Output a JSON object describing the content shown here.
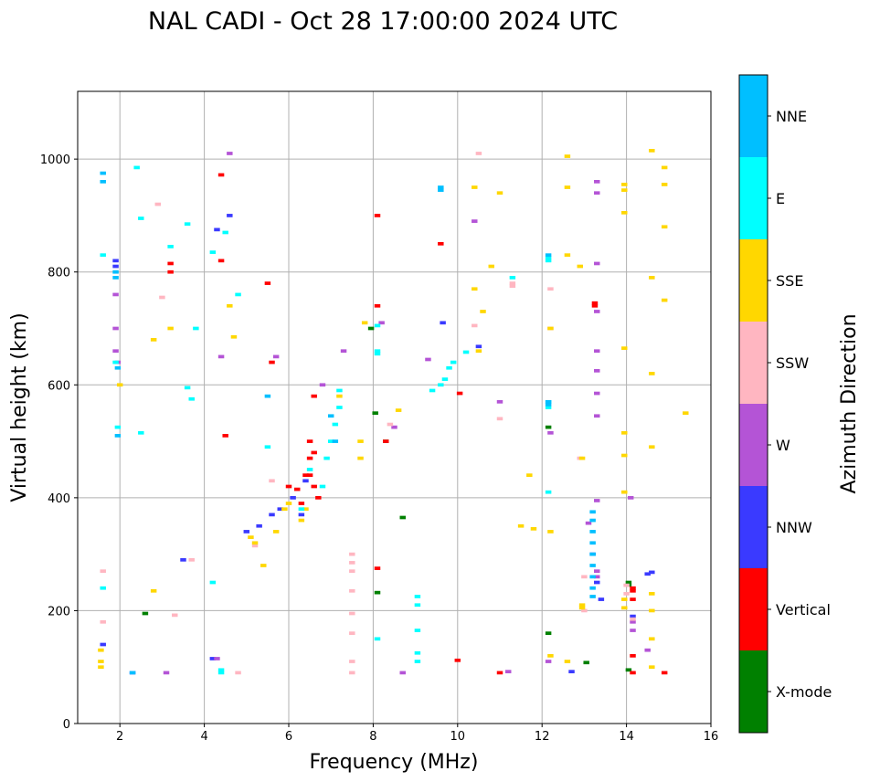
{
  "chart_data": {
    "type": "scatter",
    "title": "NAL CADI - Oct 28 17:00:00 2024 UTC",
    "xlabel": "Frequency (MHz)",
    "ylabel": "Virtual height (km)",
    "xlim": [
      1,
      16
    ],
    "ylim": [
      0,
      1120
    ],
    "xticks": [
      2,
      4,
      6,
      8,
      10,
      12,
      14,
      16
    ],
    "yticks": [
      0,
      200,
      400,
      600,
      800,
      1000
    ],
    "grid": true,
    "colorbar": {
      "title": "Azimuth Direction",
      "categories": [
        {
          "name": "X-mode",
          "color": "#008000"
        },
        {
          "name": "Vertical",
          "color": "#ff0000"
        },
        {
          "name": "NNW",
          "color": "#3a3aff"
        },
        {
          "name": "W",
          "color": "#b454d6"
        },
        {
          "name": "SSW",
          "color": "#ffb6c1"
        },
        {
          "name": "SSE",
          "color": "#ffd700"
        },
        {
          "name": "E",
          "color": "#00ffff"
        },
        {
          "name": "NNE",
          "color": "#00bfff"
        }
      ]
    },
    "series": [
      {
        "name": "X-mode",
        "points": [
          [
            2.6,
            195
          ],
          [
            7.95,
            700
          ],
          [
            8.05,
            550
          ],
          [
            8.1,
            232
          ],
          [
            8.3,
            500
          ],
          [
            8.7,
            365
          ],
          [
            12.15,
            525
          ],
          [
            12.15,
            160
          ],
          [
            13.05,
            108
          ],
          [
            14.05,
            250
          ],
          [
            14.05,
            245
          ],
          [
            14.05,
            95
          ]
        ]
      },
      {
        "name": "Vertical",
        "points": [
          [
            3.2,
            815
          ],
          [
            3.2,
            800
          ],
          [
            4.4,
            972
          ],
          [
            4.4,
            820
          ],
          [
            4.5,
            510
          ],
          [
            5.5,
            780
          ],
          [
            5.6,
            640
          ],
          [
            6.0,
            420
          ],
          [
            6.2,
            415
          ],
          [
            6.3,
            390
          ],
          [
            6.4,
            440
          ],
          [
            6.5,
            470
          ],
          [
            6.5,
            440
          ],
          [
            6.5,
            500
          ],
          [
            6.6,
            420
          ],
          [
            6.6,
            480
          ],
          [
            6.7,
            400
          ],
          [
            6.6,
            580
          ],
          [
            8.1,
            900
          ],
          [
            8.1,
            740
          ],
          [
            8.1,
            275
          ],
          [
            8.3,
            500
          ],
          [
            9.6,
            850
          ],
          [
            10.0,
            112
          ],
          [
            10.05,
            585
          ],
          [
            11.0,
            90
          ],
          [
            13.25,
            745
          ],
          [
            13.25,
            740
          ],
          [
            14.15,
            240
          ],
          [
            14.15,
            235
          ],
          [
            14.15,
            220
          ],
          [
            14.15,
            120
          ],
          [
            14.15,
            90
          ],
          [
            14.9,
            90
          ]
        ]
      },
      {
        "name": "NNW",
        "points": [
          [
            1.6,
            140
          ],
          [
            1.9,
            820
          ],
          [
            1.9,
            810
          ],
          [
            2.3,
            90
          ],
          [
            3.5,
            290
          ],
          [
            4.2,
            115
          ],
          [
            4.3,
            875
          ],
          [
            4.6,
            900
          ],
          [
            5.0,
            340
          ],
          [
            5.3,
            350
          ],
          [
            5.6,
            370
          ],
          [
            5.8,
            380
          ],
          [
            6.1,
            400
          ],
          [
            6.3,
            370
          ],
          [
            6.4,
            430
          ],
          [
            9.65,
            710
          ],
          [
            10.5,
            668
          ],
          [
            13.4,
            220
          ],
          [
            13.2,
            300
          ],
          [
            13.3,
            250
          ],
          [
            14.15,
            190
          ],
          [
            14.5,
            265
          ],
          [
            14.6,
            268
          ],
          [
            12.7,
            92
          ]
        ]
      },
      {
        "name": "W",
        "points": [
          [
            1.9,
            760
          ],
          [
            1.9,
            700
          ],
          [
            1.9,
            660
          ],
          [
            1.95,
            640
          ],
          [
            3.1,
            90
          ],
          [
            4.3,
            115
          ],
          [
            4.4,
            650
          ],
          [
            4.6,
            1010
          ],
          [
            5.7,
            650
          ],
          [
            6.8,
            600
          ],
          [
            7.3,
            660
          ],
          [
            8.2,
            710
          ],
          [
            8.5,
            525
          ],
          [
            9.3,
            645
          ],
          [
            10.4,
            890
          ],
          [
            11.0,
            570
          ],
          [
            12.2,
            515
          ],
          [
            12.15,
            110
          ],
          [
            13.1,
            355
          ],
          [
            13.3,
            940
          ],
          [
            13.3,
            960
          ],
          [
            13.3,
            815
          ],
          [
            13.3,
            730
          ],
          [
            13.3,
            660
          ],
          [
            13.3,
            625
          ],
          [
            13.3,
            585
          ],
          [
            13.3,
            545
          ],
          [
            13.3,
            395
          ],
          [
            13.3,
            270
          ],
          [
            13.3,
            260
          ],
          [
            14.15,
            180
          ],
          [
            14.15,
            165
          ],
          [
            14.1,
            400
          ],
          [
            14.5,
            130
          ],
          [
            8.7,
            90
          ],
          [
            11.2,
            92
          ]
        ]
      },
      {
        "name": "SSW",
        "points": [
          [
            1.6,
            180
          ],
          [
            1.6,
            270
          ],
          [
            2.9,
            920
          ],
          [
            3.0,
            755
          ],
          [
            3.3,
            192
          ],
          [
            3.7,
            290
          ],
          [
            4.8,
            90
          ],
          [
            5.2,
            315
          ],
          [
            5.6,
            430
          ],
          [
            7.5,
            300
          ],
          [
            7.5,
            285
          ],
          [
            7.5,
            270
          ],
          [
            7.5,
            235
          ],
          [
            7.5,
            195
          ],
          [
            7.5,
            160
          ],
          [
            7.5,
            110
          ],
          [
            7.5,
            90
          ],
          [
            8.4,
            530
          ],
          [
            10.5,
            1010
          ],
          [
            10.4,
            705
          ],
          [
            11.0,
            540
          ],
          [
            11.3,
            780
          ],
          [
            11.3,
            775
          ],
          [
            12.2,
            770
          ],
          [
            12.2,
            700
          ],
          [
            13.0,
            260
          ],
          [
            13.0,
            200
          ],
          [
            14.0,
            245
          ],
          [
            14.0,
            230
          ],
          [
            14.15,
            185
          ],
          [
            12.9,
            470
          ]
        ]
      },
      {
        "name": "SSE",
        "points": [
          [
            1.55,
            130
          ],
          [
            1.55,
            110
          ],
          [
            1.55,
            100
          ],
          [
            2.0,
            600
          ],
          [
            2.8,
            235
          ],
          [
            2.8,
            680
          ],
          [
            3.2,
            700
          ],
          [
            4.6,
            740
          ],
          [
            4.7,
            685
          ],
          [
            5.1,
            330
          ],
          [
            5.2,
            320
          ],
          [
            5.4,
            280
          ],
          [
            5.7,
            340
          ],
          [
            5.9,
            380
          ],
          [
            6.0,
            390
          ],
          [
            6.3,
            360
          ],
          [
            6.4,
            380
          ],
          [
            7.2,
            580
          ],
          [
            7.7,
            500
          ],
          [
            7.7,
            470
          ],
          [
            7.8,
            710
          ],
          [
            8.6,
            555
          ],
          [
            10.4,
            770
          ],
          [
            10.6,
            730
          ],
          [
            10.8,
            810
          ],
          [
            10.5,
            660
          ],
          [
            10.4,
            950
          ],
          [
            11.0,
            940
          ],
          [
            11.5,
            350
          ],
          [
            11.7,
            440
          ],
          [
            11.8,
            345
          ],
          [
            12.2,
            700
          ],
          [
            12.2,
            340
          ],
          [
            12.2,
            120
          ],
          [
            12.6,
            1005
          ],
          [
            12.6,
            950
          ],
          [
            12.6,
            830
          ],
          [
            12.6,
            110
          ],
          [
            12.9,
            810
          ],
          [
            12.95,
            470
          ],
          [
            12.95,
            210
          ],
          [
            12.95,
            205
          ],
          [
            13.95,
            955
          ],
          [
            13.95,
            945
          ],
          [
            13.95,
            905
          ],
          [
            13.95,
            665
          ],
          [
            13.95,
            515
          ],
          [
            13.95,
            475
          ],
          [
            13.95,
            410
          ],
          [
            13.95,
            220
          ],
          [
            13.95,
            205
          ],
          [
            14.6,
            1015
          ],
          [
            14.6,
            790
          ],
          [
            14.6,
            620
          ],
          [
            14.6,
            490
          ],
          [
            14.6,
            230
          ],
          [
            14.6,
            200
          ],
          [
            14.6,
            150
          ],
          [
            14.6,
            100
          ],
          [
            14.9,
            985
          ],
          [
            14.9,
            955
          ],
          [
            14.9,
            880
          ],
          [
            14.9,
            750
          ],
          [
            15.4,
            550
          ]
        ]
      },
      {
        "name": "E",
        "points": [
          [
            1.6,
            240
          ],
          [
            1.6,
            830
          ],
          [
            1.9,
            640
          ],
          [
            1.95,
            525
          ],
          [
            2.4,
            985
          ],
          [
            2.5,
            515
          ],
          [
            2.5,
            895
          ],
          [
            3.2,
            845
          ],
          [
            3.6,
            885
          ],
          [
            3.6,
            595
          ],
          [
            3.8,
            700
          ],
          [
            3.7,
            575
          ],
          [
            4.2,
            250
          ],
          [
            4.2,
            835
          ],
          [
            4.4,
            95
          ],
          [
            4.4,
            90
          ],
          [
            4.5,
            870
          ],
          [
            4.8,
            760
          ],
          [
            5.5,
            490
          ],
          [
            6.3,
            380
          ],
          [
            6.5,
            450
          ],
          [
            6.8,
            420
          ],
          [
            6.9,
            470
          ],
          [
            7.0,
            500
          ],
          [
            7.1,
            530
          ],
          [
            7.2,
            560
          ],
          [
            7.2,
            590
          ],
          [
            8.1,
            705
          ],
          [
            8.1,
            660
          ],
          [
            8.1,
            655
          ],
          [
            8.1,
            150
          ],
          [
            9.05,
            225
          ],
          [
            9.05,
            210
          ],
          [
            9.05,
            165
          ],
          [
            9.05,
            125
          ],
          [
            9.05,
            110
          ],
          [
            9.4,
            590
          ],
          [
            9.6,
            600
          ],
          [
            9.7,
            610
          ],
          [
            9.8,
            630
          ],
          [
            9.9,
            640
          ],
          [
            10.2,
            658
          ],
          [
            11.3,
            790
          ],
          [
            12.15,
            825
          ],
          [
            12.15,
            820
          ],
          [
            12.15,
            570
          ],
          [
            12.15,
            560
          ],
          [
            12.15,
            410
          ]
        ]
      },
      {
        "name": "NNE",
        "points": [
          [
            1.6,
            960
          ],
          [
            1.6,
            975
          ],
          [
            1.9,
            800
          ],
          [
            1.9,
            790
          ],
          [
            1.95,
            630
          ],
          [
            1.95,
            510
          ],
          [
            2.3,
            90
          ],
          [
            5.5,
            580
          ],
          [
            7.0,
            545
          ],
          [
            7.1,
            500
          ],
          [
            9.6,
            950
          ],
          [
            9.6,
            945
          ],
          [
            13.2,
            375
          ],
          [
            13.2,
            360
          ],
          [
            13.2,
            340
          ],
          [
            13.2,
            320
          ],
          [
            13.2,
            300
          ],
          [
            13.2,
            280
          ],
          [
            13.2,
            260
          ],
          [
            13.2,
            240
          ],
          [
            13.2,
            225
          ],
          [
            12.15,
            565
          ],
          [
            12.15,
            570
          ],
          [
            12.15,
            830
          ]
        ]
      }
    ]
  }
}
